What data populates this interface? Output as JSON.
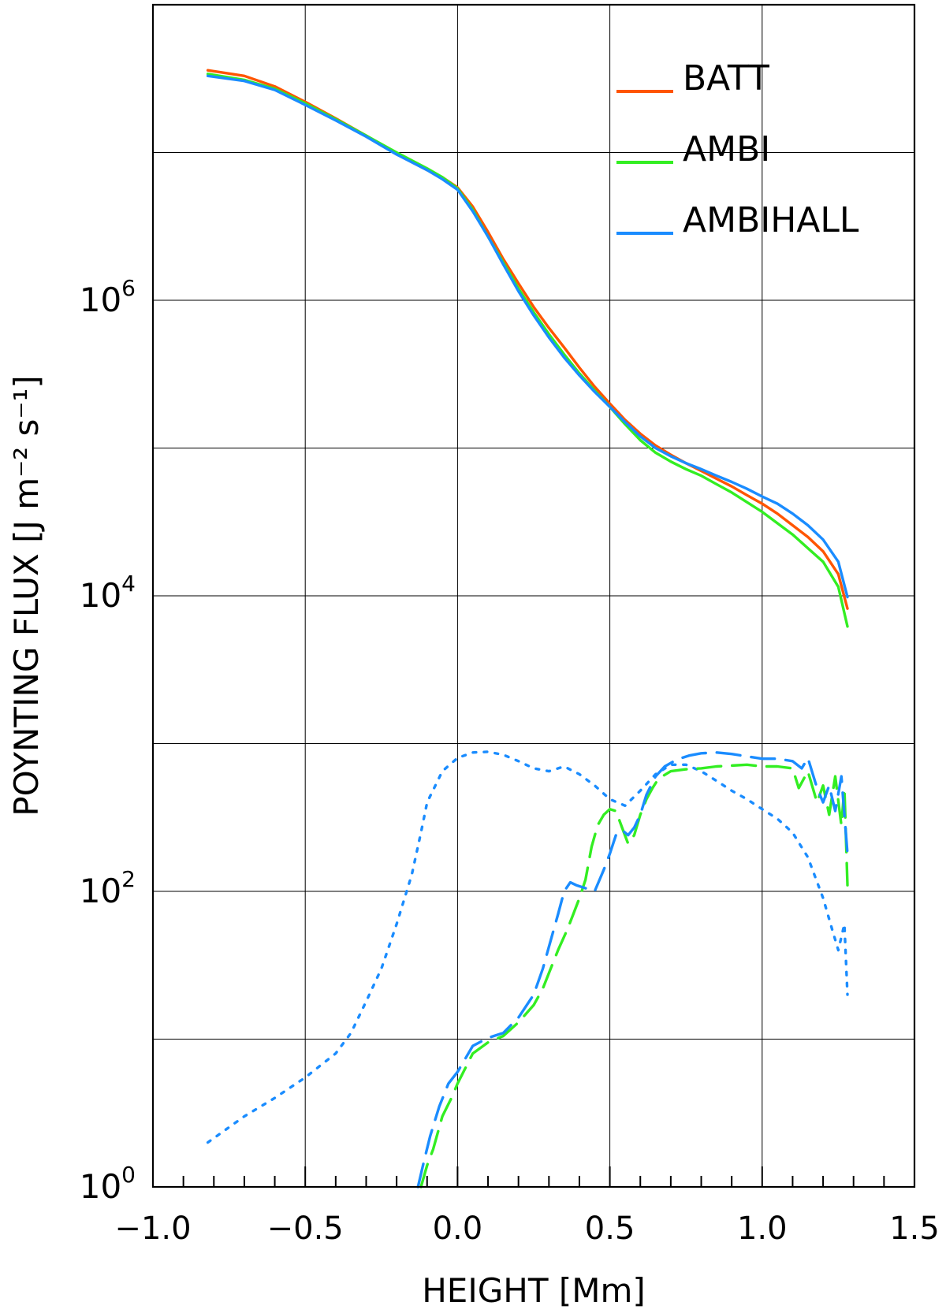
{
  "chart_data": {
    "type": "line",
    "xlabel": "HEIGHT [Mm]",
    "ylabel": "POYNTING FLUX [J m⁻² s⁻¹]",
    "xlim": [
      -1.0,
      1.5
    ],
    "ylim": [
      1,
      100000000
    ],
    "y_scale": "log",
    "grid": true,
    "legend_position": "top-right",
    "x_ticks": [
      "−1.0",
      "−0.5",
      "0.0",
      "0.5",
      "1.0",
      "1.5"
    ],
    "x_tick_values": [
      -1.0,
      -0.5,
      0.0,
      0.5,
      1.0,
      1.5
    ],
    "y_ticks": [
      {
        "value": 1,
        "base": "10",
        "exp": "0"
      },
      {
        "value": 100,
        "base": "10",
        "exp": "2"
      },
      {
        "value": 10000,
        "base": "10",
        "exp": "4"
      },
      {
        "value": 1000000,
        "base": "10",
        "exp": "6"
      }
    ],
    "y_grid_values": [
      10,
      100,
      1000,
      10000,
      100000,
      1000000,
      10000000
    ],
    "series": [
      {
        "name": "BATT",
        "color": "#ff5500",
        "style": "solid",
        "x": [
          -0.82,
          -0.7,
          -0.6,
          -0.5,
          -0.4,
          -0.3,
          -0.2,
          -0.1,
          -0.05,
          0.0,
          0.05,
          0.1,
          0.15,
          0.2,
          0.25,
          0.3,
          0.35,
          0.4,
          0.45,
          0.5,
          0.55,
          0.6,
          0.65,
          0.7,
          0.75,
          0.8,
          0.85,
          0.9,
          0.95,
          1.0,
          1.05,
          1.1,
          1.15,
          1.2,
          1.25,
          1.28
        ],
        "y": [
          36000000,
          33000000,
          28000000,
          22000000,
          17000000,
          13000000,
          9800000,
          7600000,
          6800000,
          5800000,
          4300000,
          2900000,
          1900000,
          1300000,
          900000,
          650000,
          480000,
          350000,
          260000,
          200000,
          155000,
          125000,
          104000,
          90000,
          79000,
          70000,
          62000,
          55000,
          48000,
          42000,
          36000,
          30000,
          25000,
          20000,
          14000,
          8200
        ]
      },
      {
        "name": "AMBI",
        "color": "#33ee22",
        "style": "solid",
        "x": [
          -0.82,
          -0.7,
          -0.6,
          -0.5,
          -0.4,
          -0.3,
          -0.2,
          -0.1,
          -0.05,
          0.0,
          0.05,
          0.1,
          0.15,
          0.2,
          0.25,
          0.3,
          0.35,
          0.4,
          0.45,
          0.5,
          0.55,
          0.6,
          0.65,
          0.7,
          0.75,
          0.8,
          0.85,
          0.9,
          0.95,
          1.0,
          1.05,
          1.1,
          1.15,
          1.2,
          1.25,
          1.28
        ],
        "y": [
          34000000,
          31000000,
          27000000,
          21500000,
          16800000,
          13000000,
          10000000,
          7800000,
          6800000,
          5700000,
          4100000,
          2700000,
          1800000,
          1200000,
          830000,
          590000,
          430000,
          320000,
          245000,
          190000,
          145000,
          113000,
          93000,
          81000,
          72000,
          65000,
          57000,
          50000,
          43000,
          37000,
          31000,
          26000,
          21000,
          17000,
          11500,
          6200
        ]
      },
      {
        "name": "AMBIHALL",
        "color": "#1a8cff",
        "style": "solid",
        "x": [
          -0.82,
          -0.7,
          -0.6,
          -0.5,
          -0.4,
          -0.3,
          -0.2,
          -0.1,
          -0.05,
          0.0,
          0.05,
          0.1,
          0.15,
          0.2,
          0.25,
          0.3,
          0.35,
          0.4,
          0.45,
          0.5,
          0.55,
          0.6,
          0.65,
          0.7,
          0.75,
          0.8,
          0.85,
          0.9,
          0.95,
          1.0,
          1.05,
          1.1,
          1.15,
          1.2,
          1.25,
          1.28
        ],
        "y": [
          33000000,
          30500000,
          26500000,
          21000000,
          16500000,
          12800000,
          9700000,
          7600000,
          6600000,
          5600000,
          4000000,
          2700000,
          1750000,
          1150000,
          790000,
          560000,
          410000,
          310000,
          240000,
          190000,
          150000,
          120000,
          100000,
          88000,
          79000,
          72000,
          65000,
          59000,
          53000,
          47000,
          42000,
          36000,
          30000,
          24000,
          17000,
          9800
        ]
      },
      {
        "name": "",
        "color": "#1a8cff",
        "style": "dotted",
        "x": [
          -0.82,
          -0.7,
          -0.6,
          -0.5,
          -0.4,
          -0.35,
          -0.3,
          -0.25,
          -0.2,
          -0.15,
          -0.12,
          -0.1,
          -0.05,
          0.0,
          0.05,
          0.1,
          0.15,
          0.2,
          0.25,
          0.3,
          0.35,
          0.4,
          0.45,
          0.5,
          0.55,
          0.6,
          0.65,
          0.7,
          0.75,
          0.8,
          0.85,
          0.9,
          0.95,
          1.0,
          1.05,
          1.1,
          1.15,
          1.2,
          1.23,
          1.25,
          1.27,
          1.28
        ],
        "y": [
          2.0,
          3.0,
          4.0,
          5.5,
          8.0,
          11,
          18,
          30,
          60,
          130,
          250,
          400,
          650,
          800,
          870,
          880,
          840,
          760,
          680,
          650,
          700,
          620,
          520,
          420,
          380,
          480,
          620,
          720,
          720,
          650,
          560,
          480,
          420,
          360,
          310,
          250,
          170,
          90,
          55,
          40,
          60,
          20
        ]
      },
      {
        "name": "",
        "color": "#33ee22",
        "style": "dashed",
        "x": [
          -0.12,
          -0.1,
          -0.08,
          -0.05,
          -0.02,
          0.0,
          0.05,
          0.1,
          0.15,
          0.2,
          0.25,
          0.28,
          0.3,
          0.33,
          0.36,
          0.38,
          0.4,
          0.42,
          0.44,
          0.46,
          0.48,
          0.5,
          0.52,
          0.54,
          0.56,
          0.58,
          0.6,
          0.62,
          0.64,
          0.66,
          0.7,
          0.75,
          0.8,
          0.85,
          0.9,
          0.95,
          1.0,
          1.05,
          1.1,
          1.12,
          1.15,
          1.18,
          1.2,
          1.22,
          1.24,
          1.26,
          1.27,
          1.28
        ],
        "y": [
          1.0,
          1.4,
          1.8,
          3.0,
          4.0,
          5.0,
          8.0,
          9.5,
          10.5,
          13,
          17,
          22,
          28,
          40,
          55,
          70,
          90,
          120,
          200,
          280,
          330,
          360,
          350,
          270,
          210,
          240,
          330,
          420,
          500,
          580,
          650,
          670,
          680,
          700,
          710,
          720,
          700,
          700,
          680,
          500,
          650,
          400,
          520,
          330,
          600,
          280,
          500,
          110
        ]
      },
      {
        "name": "",
        "color": "#1a8cff",
        "style": "dashed",
        "x": [
          -0.13,
          -0.11,
          -0.09,
          -0.06,
          -0.03,
          0.0,
          0.05,
          0.1,
          0.15,
          0.2,
          0.25,
          0.28,
          0.31,
          0.33,
          0.35,
          0.37,
          0.39,
          0.42,
          0.45,
          0.48,
          0.5,
          0.52,
          0.54,
          0.56,
          0.58,
          0.6,
          0.62,
          0.65,
          0.68,
          0.72,
          0.76,
          0.8,
          0.85,
          0.9,
          0.95,
          1.0,
          1.05,
          1.1,
          1.13,
          1.15,
          1.18,
          1.2,
          1.22,
          1.24,
          1.26,
          1.28
        ],
        "y": [
          1.0,
          1.5,
          2.2,
          3.5,
          5.0,
          6.0,
          9.0,
          10.2,
          11,
          14,
          20,
          30,
          50,
          70,
          100,
          115,
          110,
          105,
          100,
          140,
          180,
          240,
          260,
          240,
          270,
          330,
          450,
          600,
          700,
          780,
          830,
          860,
          870,
          850,
          820,
          790,
          790,
          760,
          680,
          800,
          500,
          400,
          520,
          350,
          600,
          180
        ]
      }
    ]
  }
}
